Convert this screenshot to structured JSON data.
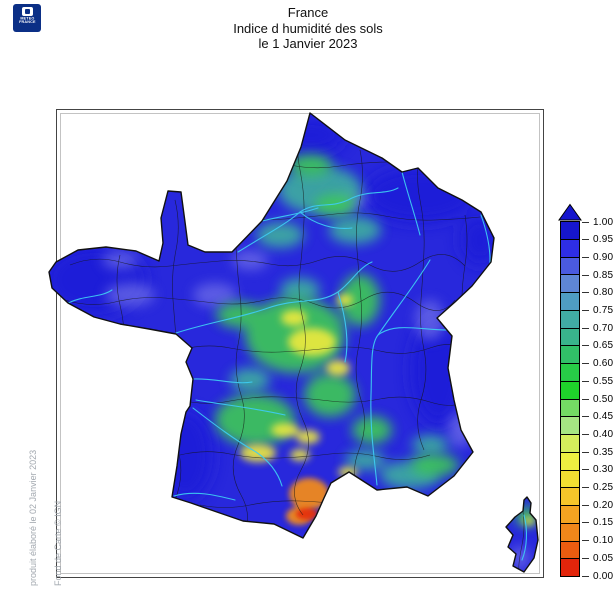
{
  "branding": {
    "logo_line1": "METEO",
    "logo_line2": "FRANCE",
    "logo_bg": "#0b2f86"
  },
  "title": {
    "line1": "France",
    "line2": "Indice d humidité des sols",
    "line3": "le 1 Janvier 2023"
  },
  "credits": {
    "produced": "produit élaboré le 02 Janvier 2023",
    "basemap": "Fond de Carte © IGN"
  },
  "legend": {
    "orientation": "vertical",
    "position": "right",
    "scale_min": 0.0,
    "scale_max": 1.0,
    "tick_step": 0.05,
    "tick_labels": [
      "1.00",
      "0.95",
      "0.90",
      "0.85",
      "0.80",
      "0.75",
      "0.70",
      "0.65",
      "0.60",
      "0.55",
      "0.50",
      "0.45",
      "0.40",
      "0.35",
      "0.30",
      "0.25",
      "0.20",
      "0.15",
      "0.10",
      "0.05",
      "0.00"
    ],
    "bins": [
      {
        "from": 0.95,
        "to": 1.0,
        "color": "#1616CE"
      },
      {
        "from": 0.9,
        "to": 0.95,
        "color": "#2E2EE4"
      },
      {
        "from": 0.85,
        "to": 0.9,
        "color": "#4A5ADF"
      },
      {
        "from": 0.8,
        "to": 0.85,
        "color": "#5E86D5"
      },
      {
        "from": 0.75,
        "to": 0.8,
        "color": "#4F9DC3"
      },
      {
        "from": 0.7,
        "to": 0.75,
        "color": "#41ABA4"
      },
      {
        "from": 0.65,
        "to": 0.7,
        "color": "#39B38C"
      },
      {
        "from": 0.6,
        "to": 0.65,
        "color": "#31BF68"
      },
      {
        "from": 0.55,
        "to": 0.6,
        "color": "#27CB47"
      },
      {
        "from": 0.5,
        "to": 0.55,
        "color": "#1FD32B"
      },
      {
        "from": 0.45,
        "to": 0.5,
        "color": "#74DB64"
      },
      {
        "from": 0.4,
        "to": 0.45,
        "color": "#A5E583"
      },
      {
        "from": 0.35,
        "to": 0.4,
        "color": "#D4ED5C"
      },
      {
        "from": 0.3,
        "to": 0.35,
        "color": "#EDEF41"
      },
      {
        "from": 0.25,
        "to": 0.3,
        "color": "#F3DF32"
      },
      {
        "from": 0.2,
        "to": 0.25,
        "color": "#F6C52A"
      },
      {
        "from": 0.15,
        "to": 0.2,
        "color": "#F4A421"
      },
      {
        "from": 0.1,
        "to": 0.15,
        "color": "#F0871A"
      },
      {
        "from": 0.05,
        "to": 0.1,
        "color": "#EB5C10"
      },
      {
        "from": 0.0,
        "to": 0.05,
        "color": "#E2250B"
      }
    ]
  },
  "chart_data": {
    "type": "heatmap",
    "title": "Indice d humidité des sols",
    "region": "France",
    "date_label": "le 1 Janvier 2023",
    "scale": {
      "min": 0.0,
      "max": 1.0,
      "step": 0.05
    },
    "legend_position": "right",
    "observed_patterns": [
      {
        "area": "north, west, east and Alps (majority of territory)",
        "index_range": "0.85-1.00"
      },
      {
        "area": "band northeast of Paris (Picardie-Champagne)",
        "index_range": "0.55-0.75"
      },
      {
        "area": "centre-east (Auvergne / Rhône corridor), yellow patches",
        "index_range": "0.30-0.55"
      },
      {
        "area": "inland southwest (Quercy / Tarn)",
        "index_range": "0.35-0.60"
      },
      {
        "area": "far south Mediterranean (Aude / Pyrénées-Orientales)",
        "index_range": "0.00-0.30"
      },
      {
        "area": "northern Corsica",
        "index_range": "0.35-0.65"
      },
      {
        "area": "southern Corsica",
        "index_range": "0.85-1.00"
      }
    ]
  }
}
